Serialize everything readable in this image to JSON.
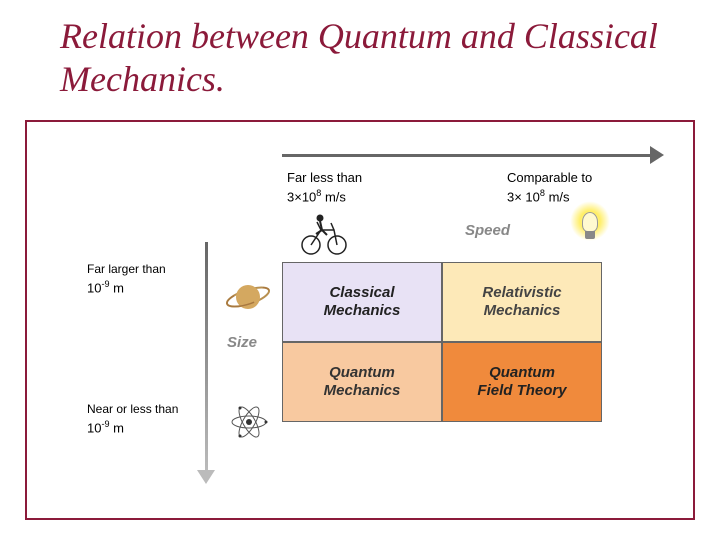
{
  "title": "Relation between Quantum and Classical Mechanics.",
  "speed_axis": {
    "label": "Speed",
    "low": {
      "text": "Far less than",
      "formula_base": "3×10",
      "formula_exp": "8",
      "formula_unit": " m/s"
    },
    "high": {
      "text": "Comparable to",
      "formula_base": "3× 10",
      "formula_exp": "8",
      "formula_unit": " m/s"
    }
  },
  "size_axis": {
    "label": "Size",
    "large": {
      "text": "Far larger than",
      "formula_base": "10",
      "formula_exp": "-9",
      "formula_unit": " m"
    },
    "small": {
      "text": "Near or less than",
      "formula_base": "10",
      "formula_exp": "-9",
      "formula_unit": " m"
    }
  },
  "quadrants": {
    "classical": "Classical Mechanics",
    "relativistic": "Relativistic Mechanics",
    "quantum": "Quantum Mechanics",
    "qft": "Quantum Field Theory"
  },
  "colors": {
    "title": "#8b1a3a",
    "frame": "#8b1a3a",
    "classical_bg": "#e8e2f5",
    "relativistic_bg": "#fde9b8",
    "quantum_bg": "#f8c9a0",
    "qft_bg": "#f08a3c",
    "arrow": "#666666"
  }
}
